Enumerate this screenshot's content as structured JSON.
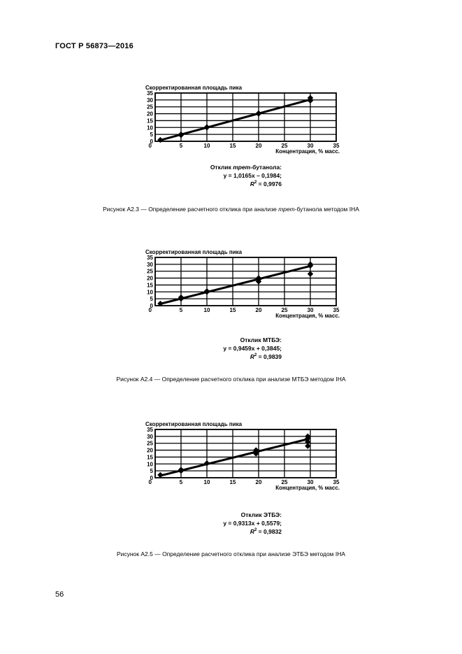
{
  "header": {
    "title": "ГОСТ Р 56873—2016"
  },
  "page": {
    "number": "56"
  },
  "figures": [
    {
      "caption": {
        "prefix": "Рисунок А2.3 — Определение расчетного отклика при анализе ",
        "italic": "трет",
        "suffix": "-бутанола методом IHA"
      },
      "equation": {
        "title_prefix": "Отклик ",
        "title_italic": "трет",
        "title_suffix": "-бутанола:",
        "formula": "y = 1,0165x – 0,1984;",
        "r2_label": "R",
        "r2_exp": "2",
        "r2_value": " = 0,9976"
      }
    },
    {
      "caption": {
        "prefix": "Рисунок А2.4 — Определение расчетного отклика при анализе МТБЭ методом IHA",
        "italic": "",
        "suffix": ""
      },
      "equation": {
        "title_prefix": "Отклик МТБЭ:",
        "title_italic": "",
        "title_suffix": "",
        "formula": "y = 0,9459x + 0,3845;",
        "r2_label": "R",
        "r2_exp": "2",
        "r2_value": " = 0,9839"
      }
    },
    {
      "caption": {
        "prefix": "Рисунок А2.5 — Определение расчетного отклика при анализе ЭТБЭ методом IHA",
        "italic": "",
        "suffix": ""
      },
      "equation": {
        "title_prefix": "Отклик ЭТБЭ:",
        "title_italic": "",
        "title_suffix": "",
        "formula": "y = 0,9313x + 0,5579;",
        "r2_label": "R",
        "r2_exp": "2",
        "r2_value": " = 0,9832"
      }
    }
  ],
  "chart_data": [
    {
      "type": "scatter",
      "ylabel": "Скорректированная площадь пика",
      "xlabel": "Концентрация, % масс.",
      "xlim": [
        0,
        35
      ],
      "ylim": [
        0,
        35
      ],
      "x_ticks": [
        0,
        5,
        10,
        15,
        20,
        25,
        30,
        35
      ],
      "y_ticks": [
        0,
        5,
        10,
        15,
        20,
        25,
        30,
        35
      ],
      "grid": true,
      "points": [
        [
          1,
          1
        ],
        [
          5,
          5
        ],
        [
          5,
          4.5
        ],
        [
          10,
          10
        ],
        [
          10,
          10.3
        ],
        [
          20,
          20
        ],
        [
          20,
          20.3
        ],
        [
          30,
          30
        ],
        [
          30,
          31.5
        ],
        [
          30,
          29.5
        ]
      ],
      "fit": {
        "slope": 1.0165,
        "intercept": -0.1984,
        "x_range": [
          1,
          30
        ]
      }
    },
    {
      "type": "scatter",
      "ylabel": "Скорректированная площадь пика",
      "xlabel": "Концентрация, % масс.",
      "xlim": [
        0,
        35
      ],
      "ylim": [
        0,
        35
      ],
      "x_ticks": [
        0,
        5,
        10,
        15,
        20,
        25,
        30,
        35
      ],
      "y_ticks": [
        0,
        5,
        10,
        15,
        20,
        25,
        30,
        35
      ],
      "grid": true,
      "points": [
        [
          1,
          1.5
        ],
        [
          5,
          5
        ],
        [
          5,
          6
        ],
        [
          10,
          10
        ],
        [
          10,
          10.5
        ],
        [
          20,
          20
        ],
        [
          20,
          19
        ],
        [
          20,
          17.5
        ],
        [
          30,
          30
        ],
        [
          30,
          29
        ],
        [
          30,
          23
        ]
      ],
      "fit": {
        "slope": 0.9459,
        "intercept": 0.3845,
        "x_range": [
          1,
          30
        ]
      }
    },
    {
      "type": "scatter",
      "ylabel": "Скорректированная площадь пика",
      "xlabel": "Концентрация, % масс.",
      "xlim": [
        0,
        35
      ],
      "ylim": [
        0,
        35
      ],
      "x_ticks": [
        0,
        5,
        10,
        15,
        20,
        25,
        30,
        35
      ],
      "y_ticks": [
        0,
        5,
        10,
        15,
        20,
        25,
        30,
        35
      ],
      "grid": true,
      "points": [
        [
          1,
          2
        ],
        [
          5,
          5
        ],
        [
          5,
          5.8
        ],
        [
          10,
          10.5
        ],
        [
          19.5,
          20
        ],
        [
          19.5,
          19
        ],
        [
          19.5,
          17.5
        ],
        [
          29.5,
          30
        ],
        [
          29.5,
          28.5
        ],
        [
          29.5,
          26
        ],
        [
          29.5,
          23
        ]
      ],
      "fit": {
        "slope": 0.9313,
        "intercept": 0.5579,
        "x_range": [
          1,
          29.5
        ]
      }
    }
  ]
}
